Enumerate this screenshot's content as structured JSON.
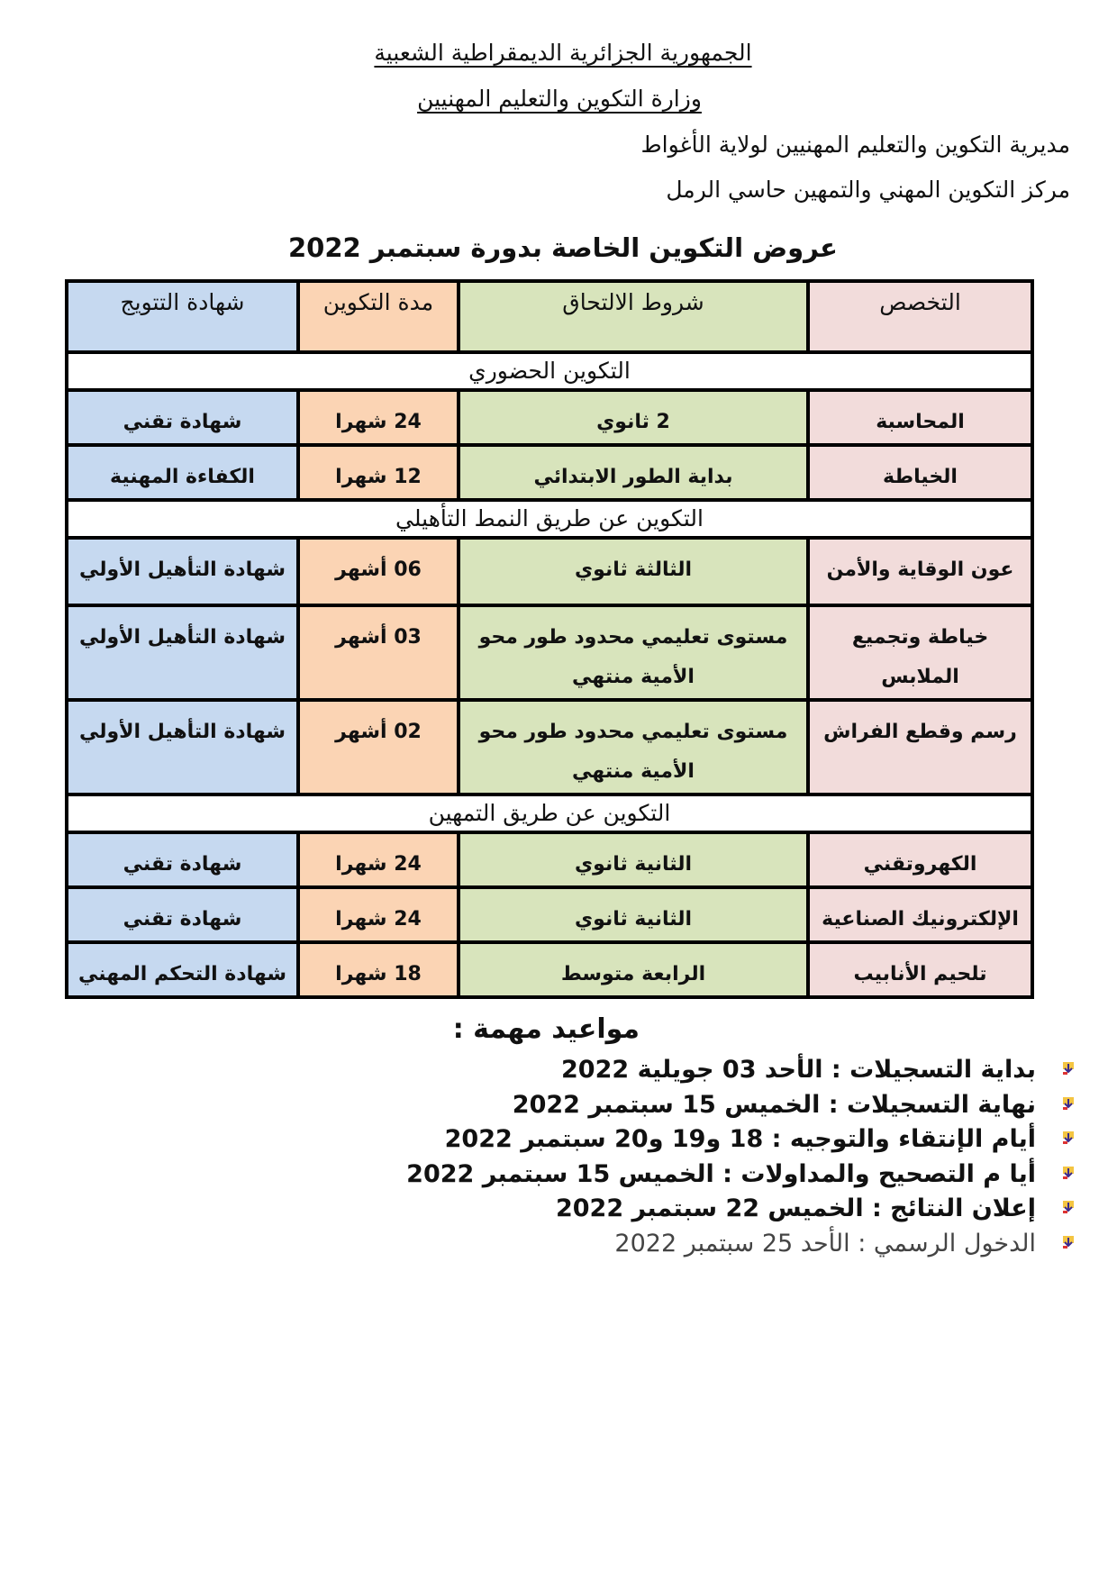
{
  "header": {
    "line1": "الجمهورية الجزائرية الديمقراطية الشعبية",
    "line2": "وزارة التكوين والتعليم المهنيين",
    "line3": "مديرية التكوين والتعليم المهنيين لولاية الأغواط",
    "line4": "مركز التكوين المهني والتمهين حاسي الرمل",
    "title": "عروض التكوين الخاصة بدورة سبتمبر 2022"
  },
  "colors": {
    "specialty": "#f2dcdb",
    "conditions": "#d8e4bc",
    "duration": "#fbd4b4",
    "certificate": "#c6d9f0"
  },
  "table": {
    "columns": [
      "التخصص",
      "شروط الالتحاق",
      "مدة التكوين",
      "شهادة التتويج"
    ],
    "sections": [
      {
        "title": "التكوين الحضوري",
        "rows": [
          [
            "المحاسبة",
            "2 ثانوي",
            "24 شهرا",
            "شهادة تقني"
          ],
          [
            "الخياطة",
            "بداية الطور الابتدائي",
            "12 شهرا",
            "الكفاءة المهنية"
          ]
        ]
      },
      {
        "title": "التكوين عن طريق النمط التأهيلي",
        "rows": [
          [
            "عون الوقاية والأمن",
            "الثالثة ثانوي",
            "06 أشهر",
            "شهادة التأهيل الأولي"
          ],
          [
            "خياطة وتجميع الملابس",
            "مستوى تعليمي محدود طور محو الأمية منتهي",
            "03 أشهر",
            "شهادة التأهيل الأولي"
          ],
          [
            "رسم وقطع الفراش",
            "مستوى تعليمي محدود طور محو الأمية منتهي",
            "02 أشهر",
            "شهادة التأهيل الأولي"
          ]
        ]
      },
      {
        "title": "التكوين عن طريق التمهين",
        "rows": [
          [
            "الكهروتقني",
            "الثانية ثانوي",
            "24 شهرا",
            "شهادة تقني"
          ],
          [
            "الإلكترونيك الصناعية",
            "الثانية ثانوي",
            "24 شهرا",
            "شهادة تقني"
          ],
          [
            "تلحيم الأنابيب",
            "الرابعة متوسط",
            "18 شهرا",
            "شهادة التحكم المهني"
          ]
        ]
      }
    ]
  },
  "dates": {
    "heading": "مواعيد مهمة :",
    "bullet_icon": "arrow-bullet-icon",
    "items": [
      "بداية التسجيلات : الأحد 03 جويلية 2022",
      "نهاية التسجيلات : الخميس 15 سبتمبر 2022",
      "أيام الإنتقاء والتوجيه : 18 و19 و20 سبتمبر 2022",
      "أيا م التصحيح والمداولات : الخميس 15 سبتمبر 2022",
      "إعلان النتائج : الخميس 22 سبتمبر 2022",
      "الدخول الرسمي : الأحد 25 سبتمبر 2022"
    ]
  }
}
